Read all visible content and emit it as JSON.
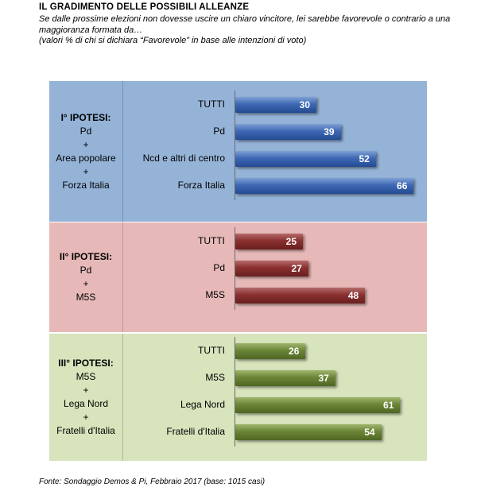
{
  "title": "IL GRADIMENTO DELLE POSSIBILI ALLEANZE",
  "subtitle": "Se dalle prossime elezioni non dovesse uscire un chiaro vincitore, lei sarebbe favorevole o contrario a una maggioranza formata da…",
  "note": "(valori % di chi si dichiara “Favorevole” in base alle intenzioni di voto)",
  "footer": "Fonte: Sondaggio Demos & Pi, Febbraio 2017 (base: 1015 casi)",
  "colors": {
    "panel_1_bg": "#95b3d7",
    "panel_2_bg": "#e6b9b8",
    "panel_3_bg": "#d7e4bc",
    "bar_1": "#2f5597",
    "bar_2": "#7b2727",
    "bar_3": "#5f7a2e"
  },
  "chart_data": [
    {
      "type": "bar",
      "orientation": "horizontal",
      "panel_label": [
        "I° IPOTESI:",
        "Pd",
        "+",
        "Area popolare",
        "+",
        "Forza Italia"
      ],
      "categories": [
        "TUTTI",
        "Pd",
        "Ncd e altri di centro",
        "Forza Italia"
      ],
      "values": [
        30,
        39,
        52,
        66
      ]
    },
    {
      "type": "bar",
      "orientation": "horizontal",
      "panel_label": [
        "II° IPOTESI:",
        "Pd",
        "+",
        "M5S"
      ],
      "categories": [
        "TUTTI",
        "Pd",
        "M5S"
      ],
      "values": [
        25,
        27,
        48
      ]
    },
    {
      "type": "bar",
      "orientation": "horizontal",
      "panel_label": [
        "III° IPOTESI:",
        "M5S",
        "+",
        "Lega Nord",
        "+",
        "Fratelli d'Italia"
      ],
      "categories": [
        "TUTTI",
        "M5S",
        "Lega Nord",
        "Fratelli d'Italia"
      ],
      "values": [
        26,
        37,
        61,
        54
      ]
    }
  ]
}
